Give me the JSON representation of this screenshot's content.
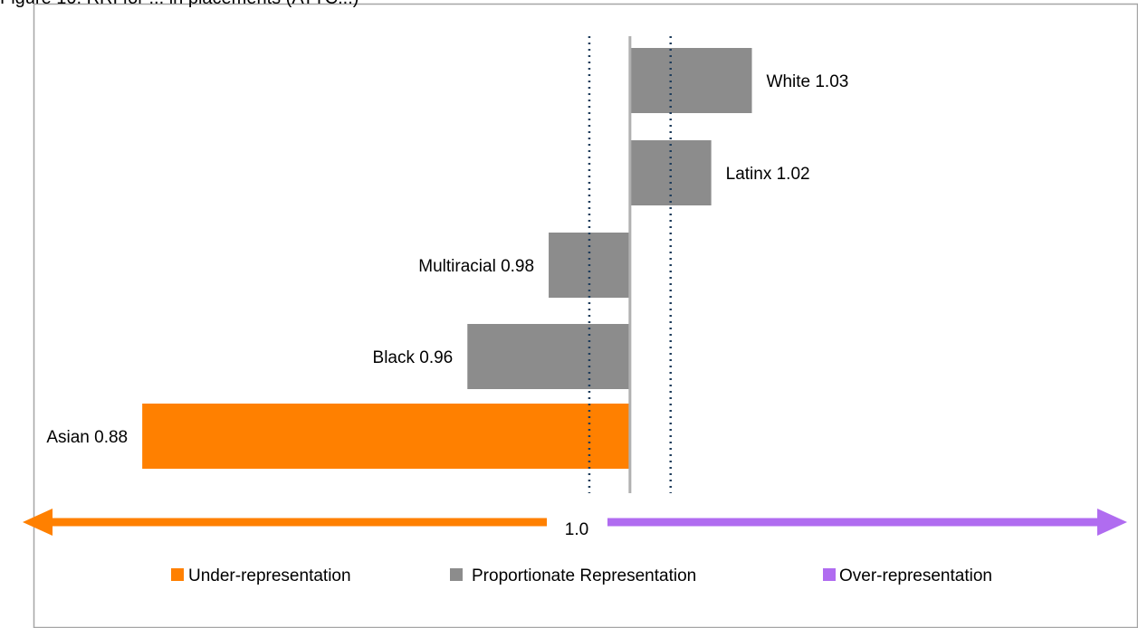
{
  "chart_data": {
    "type": "bar",
    "orientation": "horizontal",
    "title": "Figure 10. RRI for ... in placements (ATTC...)",
    "reference_value": 1.0,
    "reference_label": "1.0",
    "xlim": [
      0.845,
      1.125
    ],
    "threshold_lines": [
      0.99,
      1.01
    ],
    "categories": [
      "White",
      "Latinx",
      "Multiracial",
      "Black",
      "Asian"
    ],
    "values": [
      1.03,
      1.02,
      0.98,
      0.96,
      0.88
    ],
    "bar_labels": [
      "White 1.03",
      "Latinx 1.02",
      "Multiracial 0.98",
      "Black 0.96",
      "Asian 0.88"
    ],
    "bar_classes": [
      "proportionate",
      "proportionate",
      "proportionate",
      "proportionate",
      "under"
    ],
    "colors": {
      "under": "#ff8000",
      "proportionate": "#8c8c8c",
      "over": "#b06cf0",
      "threshold": "#1f3d5c",
      "reference": "#b0b0b0"
    },
    "legend": {
      "placement": "bottom",
      "items": [
        {
          "key": "under",
          "label": "Under-representation"
        },
        {
          "key": "proportionate",
          "label": "Proportionate Representation"
        },
        {
          "key": "over",
          "label": "Over-representation"
        }
      ]
    },
    "grid": false
  }
}
